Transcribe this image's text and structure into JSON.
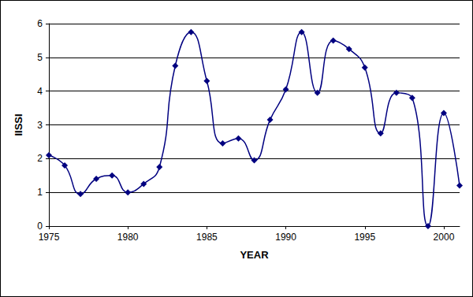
{
  "chart_data": {
    "type": "line",
    "x_label": "YEAR",
    "y_label": "IISSI",
    "x": [
      1975,
      1976,
      1977,
      1978,
      1979,
      1980,
      1981,
      1982,
      1983,
      1984,
      1985,
      1986,
      1987,
      1988,
      1989,
      1990,
      1991,
      1992,
      1993,
      1994,
      1995,
      1996,
      1997,
      1998,
      1999,
      2000,
      2001
    ],
    "values": [
      2.1,
      1.8,
      0.95,
      1.4,
      1.5,
      1.0,
      1.25,
      1.75,
      4.75,
      5.75,
      4.3,
      2.45,
      2.6,
      1.95,
      3.15,
      4.05,
      5.75,
      3.95,
      5.5,
      5.25,
      4.7,
      2.75,
      3.95,
      3.8,
      0.0,
      3.35,
      1.2
    ],
    "color": "#000080",
    "marker": "diamond",
    "line_style": "smooth",
    "xlim": [
      1975,
      2001
    ],
    "xticks": [
      1975,
      1980,
      1985,
      1990,
      1995,
      2000
    ],
    "ylim": [
      0,
      6
    ],
    "yticks": [
      0,
      1,
      2,
      3,
      4,
      5,
      6
    ],
    "grid": true
  }
}
